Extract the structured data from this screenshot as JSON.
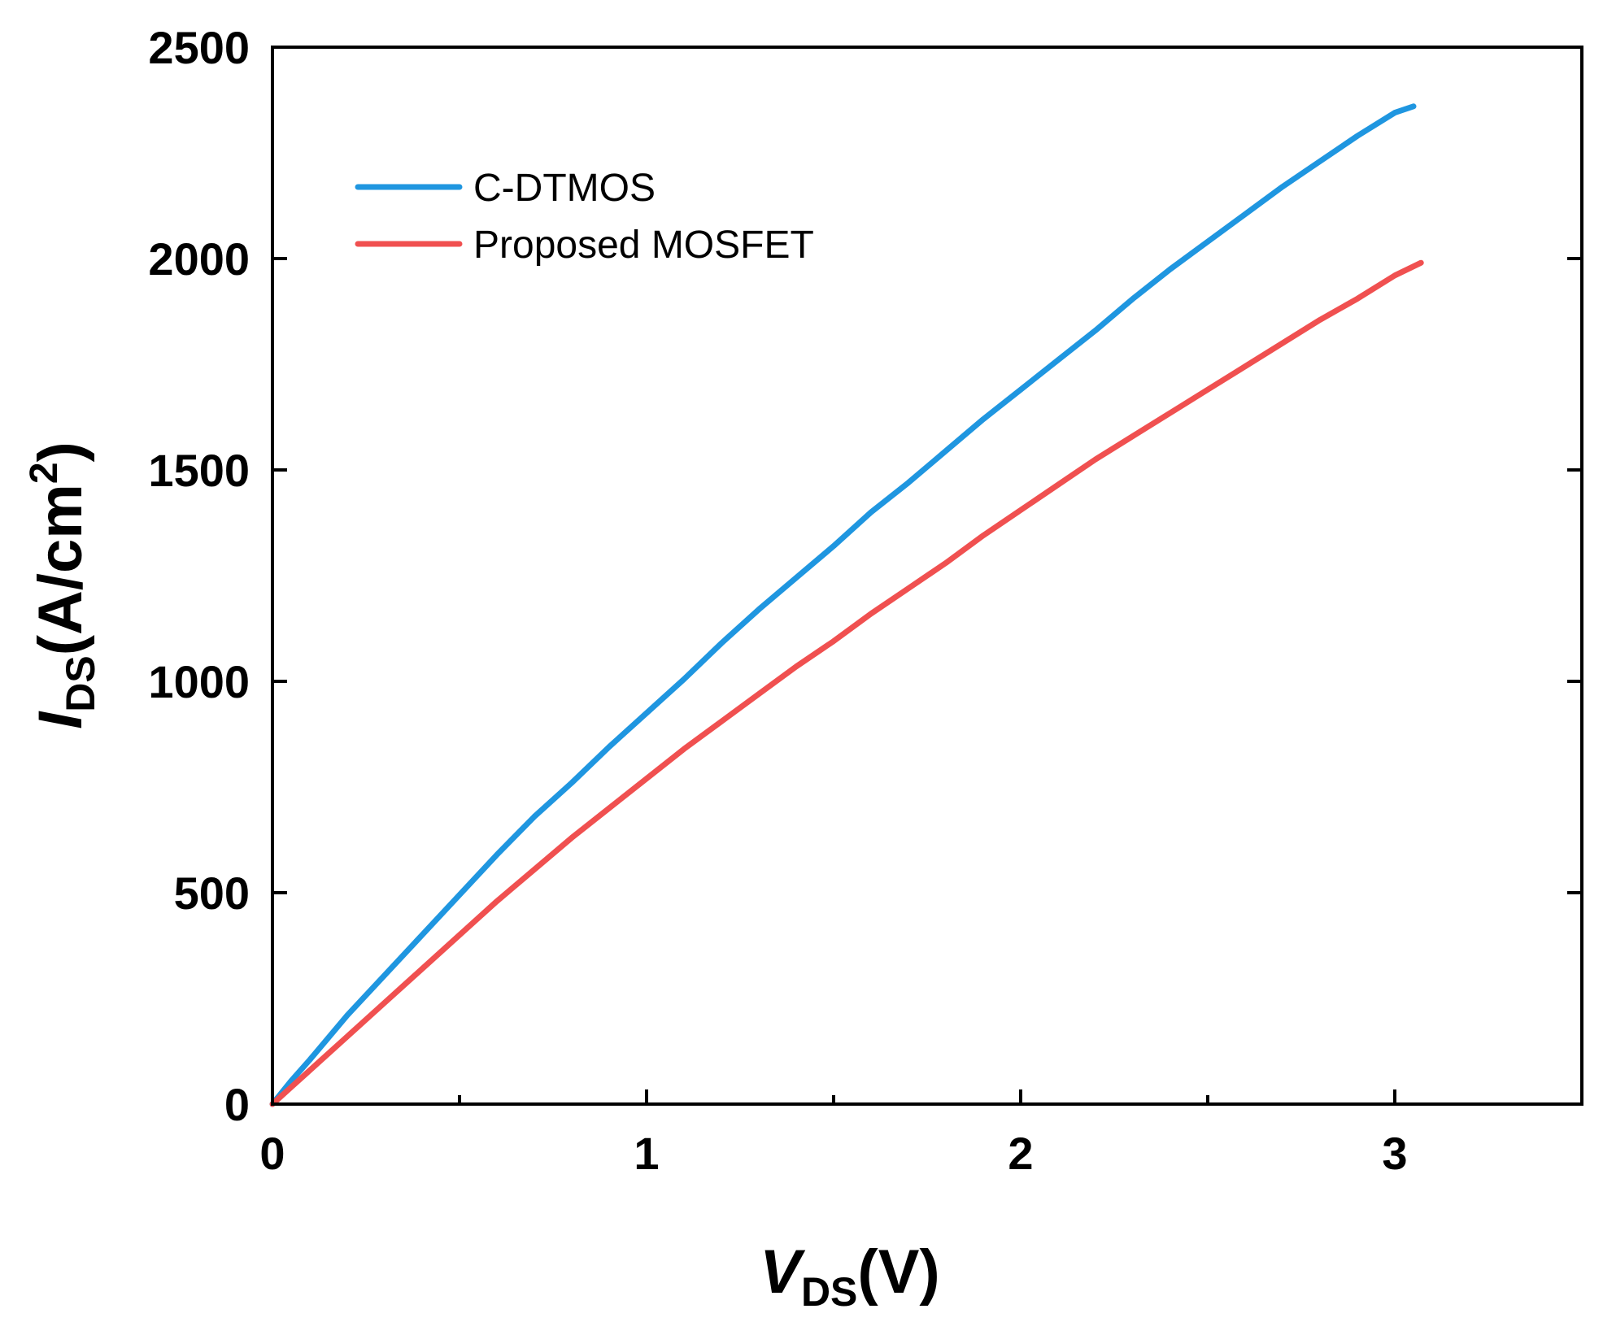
{
  "chart_data": {
    "type": "line",
    "title": "",
    "xlabel": {
      "main": "V",
      "sub": "DS",
      "unit": "(V)"
    },
    "ylabel": {
      "main": "I",
      "sub": "DS",
      "unit_open": "(A/cm",
      "unit_sup": "2",
      "unit_close": ")"
    },
    "xlim": [
      0,
      3.5
    ],
    "ylim": [
      0,
      2500
    ],
    "xticks": [
      0,
      1,
      2,
      3
    ],
    "xtick_labels": [
      "0",
      "1",
      "2",
      "3"
    ],
    "x_minor_ticks": [
      0.5,
      1.5,
      2.5,
      3.5
    ],
    "yticks": [
      0,
      500,
      1000,
      1500,
      2000,
      2500
    ],
    "ytick_labels": [
      "0",
      "500",
      "1000",
      "1500",
      "2000",
      "2500"
    ],
    "grid": false,
    "legend_position": "top-left",
    "series": [
      {
        "name": "C-DTMOS",
        "color": "#1f96e0",
        "x": [
          0.0,
          0.05,
          0.1,
          0.2,
          0.3,
          0.4,
          0.5,
          0.6,
          0.7,
          0.8,
          0.9,
          1.0,
          1.1,
          1.2,
          1.3,
          1.4,
          1.5,
          1.6,
          1.7,
          1.8,
          1.9,
          2.0,
          2.1,
          2.2,
          2.3,
          2.4,
          2.5,
          2.6,
          2.7,
          2.8,
          2.9,
          3.0,
          3.05
        ],
        "y": [
          0,
          55,
          105,
          210,
          305,
          400,
          495,
          590,
          680,
          760,
          845,
          925,
          1005,
          1090,
          1170,
          1245,
          1320,
          1400,
          1470,
          1545,
          1620,
          1690,
          1760,
          1830,
          1905,
          1975,
          2040,
          2105,
          2170,
          2230,
          2290,
          2345,
          2360
        ]
      },
      {
        "name": "Proposed MOSFET",
        "color": "#f05050",
        "x": [
          0.0,
          0.05,
          0.1,
          0.2,
          0.3,
          0.4,
          0.5,
          0.6,
          0.7,
          0.8,
          0.9,
          1.0,
          1.1,
          1.2,
          1.3,
          1.4,
          1.5,
          1.6,
          1.7,
          1.8,
          1.9,
          2.0,
          2.1,
          2.2,
          2.3,
          2.4,
          2.5,
          2.6,
          2.7,
          2.8,
          2.9,
          3.0,
          3.07
        ],
        "y": [
          0,
          40,
          80,
          160,
          240,
          320,
          400,
          480,
          555,
          630,
          700,
          770,
          840,
          905,
          970,
          1035,
          1095,
          1160,
          1220,
          1280,
          1345,
          1405,
          1465,
          1525,
          1580,
          1635,
          1690,
          1745,
          1800,
          1855,
          1905,
          1960,
          1990
        ]
      }
    ]
  }
}
